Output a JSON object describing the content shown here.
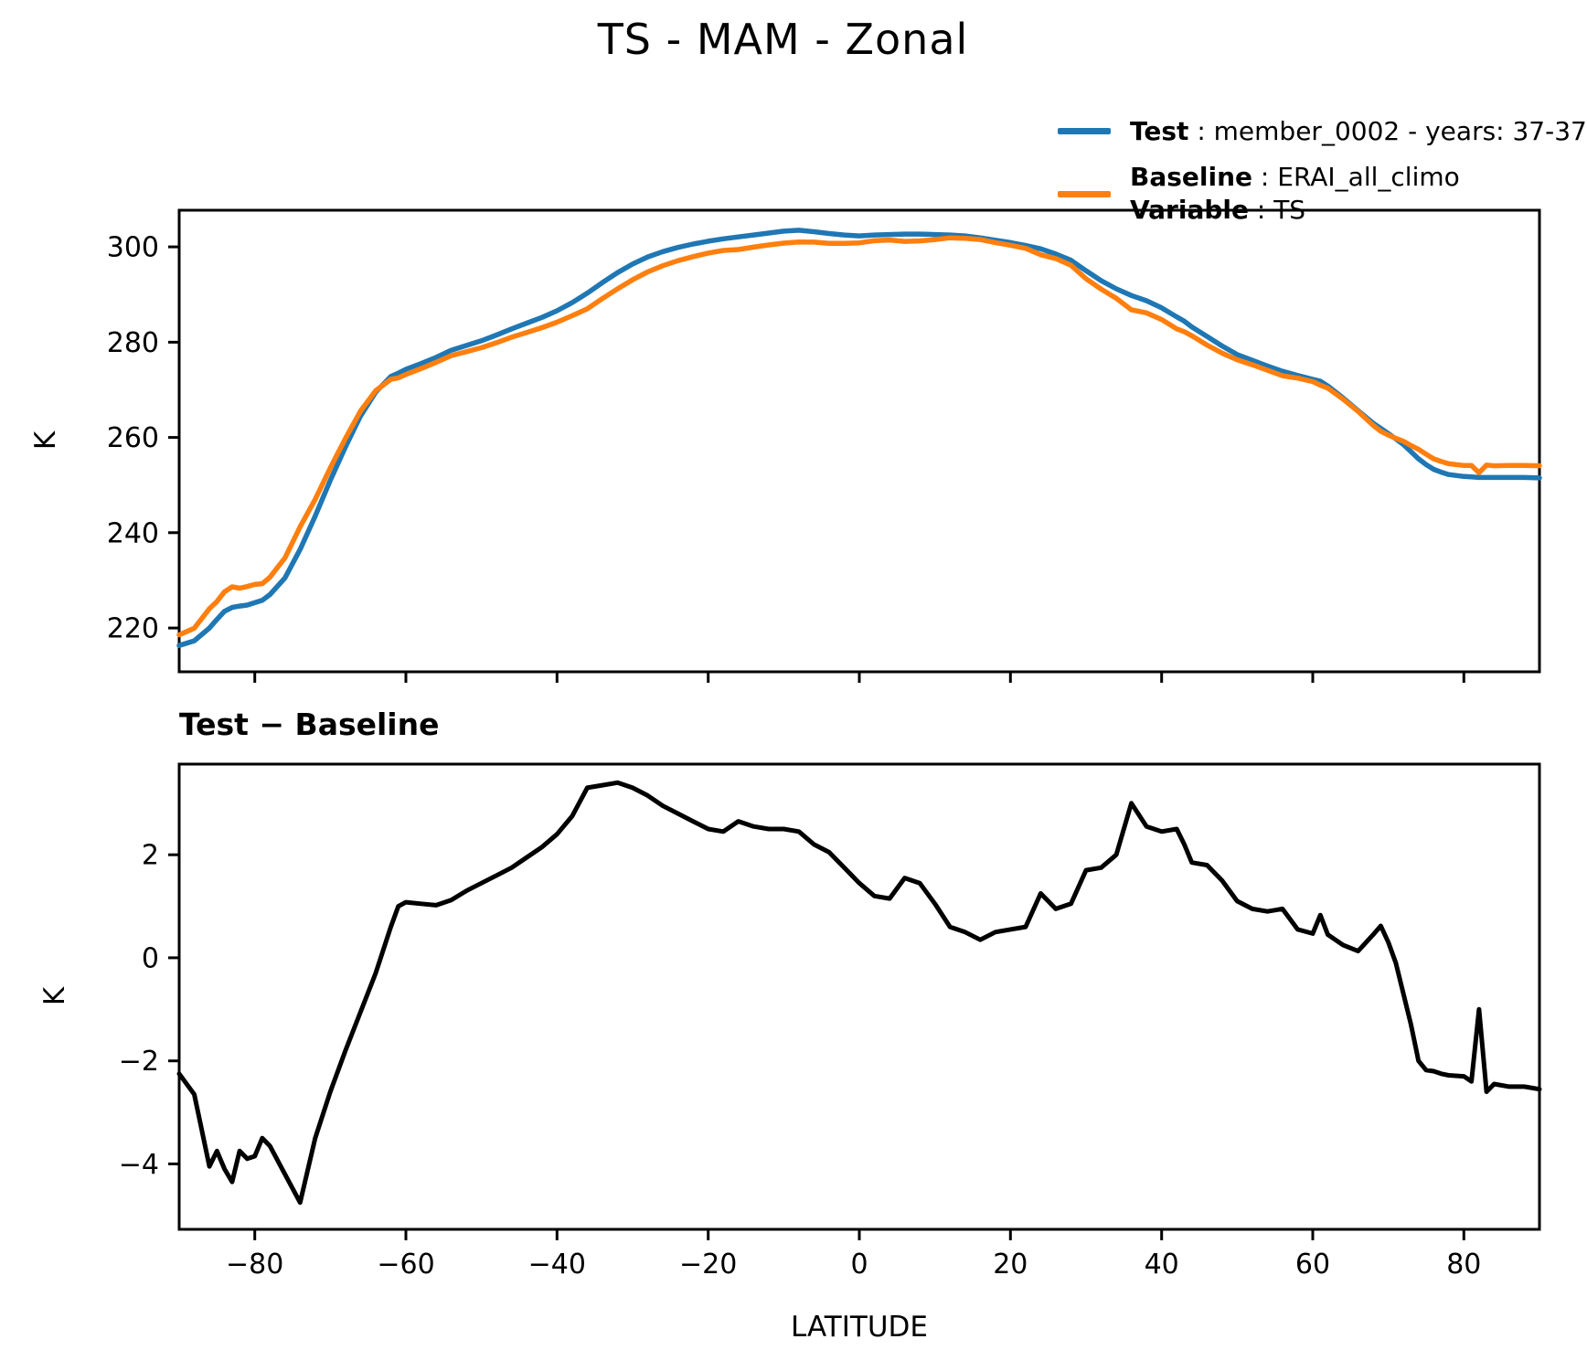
{
  "figure": {
    "title": "TS - MAM - Zonal",
    "background": "#ffffff",
    "accent_colors": {
      "test": "#1f77b4",
      "baseline": "#ff7f0e",
      "diff": "#000000"
    }
  },
  "legend": {
    "test_label": "Test",
    "test_desc": " : member_0002 - years: 37-37",
    "baseline_label": "Baseline",
    "baseline_desc": " : ERAI_all_climo",
    "variable_label": "Variable",
    "variable_desc": " : TS"
  },
  "chart_data": {
    "latitudes": [
      -90,
      -88,
      -86,
      -85,
      -84,
      -83,
      -82,
      -81,
      -80,
      -79,
      -78,
      -76,
      -74,
      -72,
      -70,
      -68,
      -66,
      -64,
      -62,
      -61,
      -60,
      -58,
      -56,
      -54,
      -52,
      -50,
      -48,
      -46,
      -44,
      -42,
      -40,
      -38,
      -36,
      -34,
      -32,
      -30,
      -28,
      -26,
      -24,
      -22,
      -20,
      -18,
      -16,
      -14,
      -12,
      -10,
      -8,
      -6,
      -4,
      -2,
      0,
      2,
      4,
      6,
      8,
      10,
      12,
      14,
      16,
      18,
      20,
      22,
      24,
      26,
      28,
      30,
      32,
      34,
      36,
      38,
      40,
      42,
      43,
      44,
      46,
      48,
      50,
      52,
      54,
      56,
      58,
      60,
      61,
      62,
      64,
      66,
      68,
      69,
      70,
      71,
      72,
      73,
      74,
      75,
      76,
      77,
      78,
      80,
      81,
      82,
      83,
      84,
      86,
      88,
      90
    ],
    "panels": [
      {
        "type": "line",
        "title": "TS - MAM - Zonal",
        "xlabel": "",
        "ylabel": "K",
        "xlim": [
          -90,
          90
        ],
        "ylim": [
          210.8,
          307.7
        ],
        "grid": false,
        "legend_position": "upper right, outside axes",
        "xticks": [
          {
            "v": -80,
            "label": "−80"
          },
          {
            "v": -60,
            "label": "−60"
          },
          {
            "v": -40,
            "label": "−40"
          },
          {
            "v": -20,
            "label": "−20"
          },
          {
            "v": 0,
            "label": "0"
          },
          {
            "v": 20,
            "label": "20"
          },
          {
            "v": 40,
            "label": "40"
          },
          {
            "v": 60,
            "label": "60"
          },
          {
            "v": 80,
            "label": "80"
          }
        ],
        "show_xtick_labels": false,
        "yticks": [
          {
            "v": 220,
            "label": "220"
          },
          {
            "v": 240,
            "label": "240"
          },
          {
            "v": 260,
            "label": "260"
          },
          {
            "v": 280,
            "label": "280"
          },
          {
            "v": 300,
            "label": "300"
          }
        ],
        "series": [
          {
            "name": "Test",
            "color": "#1f77b4",
            "values": [
              216.3,
              217.3,
              220.0,
              221.8,
              223.5,
              224.3,
              224.6,
              224.8,
              225.3,
              225.8,
              227.0,
              230.5,
              236.5,
              243.5,
              251.0,
              258.0,
              264.5,
              269.5,
              272.8,
              273.5,
              274.3,
              275.5,
              276.8,
              278.3,
              279.3,
              280.3,
              281.5,
              282.8,
              284.0,
              285.2,
              286.6,
              288.3,
              290.3,
              292.5,
              294.6,
              296.4,
              297.9,
              299.0,
              299.9,
              300.6,
              301.2,
              301.7,
              302.1,
              302.5,
              302.9,
              303.3,
              303.5,
              303.2,
              302.8,
              302.5,
              302.3,
              302.5,
              302.6,
              302.7,
              302.7,
              302.6,
              302.5,
              302.3,
              301.9,
              301.4,
              300.9,
              300.3,
              299.6,
              298.5,
              297.2,
              295.0,
              292.9,
              291.2,
              289.8,
              288.7,
              287.2,
              285.3,
              284.4,
              283.2,
              281.2,
              279.2,
              277.4,
              276.2,
              275.0,
              273.9,
              273.0,
              272.2,
              271.8,
              270.8,
              268.3,
              265.6,
              263.0,
              261.9,
              260.8,
              259.7,
              258.5,
              257.0,
              255.5,
              254.3,
              253.3,
              252.7,
              252.2,
              251.8,
              251.7,
              251.6,
              251.6,
              251.6,
              251.6,
              251.6,
              251.5
            ]
          },
          {
            "name": "Baseline",
            "color": "#ff7f0e",
            "values": [
              218.55,
              219.95,
              224.05,
              225.55,
              227.6,
              228.65,
              228.35,
              228.7,
              229.15,
              229.3,
              230.65,
              234.7,
              241.25,
              247.0,
              253.6,
              259.8,
              265.55,
              269.8,
              272.2,
              272.5,
              273.22,
              274.45,
              275.78,
              277.18,
              278.0,
              278.85,
              279.9,
              281.05,
              282.05,
              283.05,
              284.2,
              285.55,
              287.0,
              289.15,
              291.2,
              293.1,
              294.75,
              296.05,
              297.1,
              297.95,
              298.7,
              299.25,
              299.45,
              299.95,
              300.4,
              300.8,
              301.05,
              301.0,
              300.75,
              300.75,
              300.85,
              301.3,
              301.45,
              301.15,
              301.25,
              301.55,
              301.9,
              301.8,
              301.55,
              300.9,
              300.35,
              299.7,
              298.35,
              297.55,
              296.15,
              293.3,
              291.15,
              289.2,
              286.8,
              286.15,
              284.75,
              282.8,
              282.2,
              281.35,
              279.4,
              277.7,
              276.3,
              275.25,
              274.1,
              272.95,
              272.45,
              271.73,
              270.97,
              270.35,
              268.05,
              265.47,
              262.55,
              261.28,
              260.5,
              259.8,
              259.2,
              258.3,
              257.5,
              256.48,
              255.5,
              254.95,
              254.48,
              254.1,
              254.1,
              252.6,
              254.2,
              254.05,
              254.1,
              254.1,
              254.05
            ]
          }
        ]
      },
      {
        "type": "line",
        "title": "Test − Baseline",
        "xlabel": "LATITUDE",
        "ylabel": "K",
        "xlim": [
          -90,
          90
        ],
        "ylim": [
          -5.27,
          3.76
        ],
        "grid": false,
        "xticks": [
          {
            "v": -80,
            "label": "−80"
          },
          {
            "v": -60,
            "label": "−60"
          },
          {
            "v": -40,
            "label": "−40"
          },
          {
            "v": -20,
            "label": "−20"
          },
          {
            "v": 0,
            "label": "0"
          },
          {
            "v": 20,
            "label": "20"
          },
          {
            "v": 40,
            "label": "40"
          },
          {
            "v": 60,
            "label": "60"
          },
          {
            "v": 80,
            "label": "80"
          }
        ],
        "show_xtick_labels": true,
        "yticks": [
          {
            "v": -4,
            "label": "−4"
          },
          {
            "v": -2,
            "label": "−2"
          },
          {
            "v": 0,
            "label": "0"
          },
          {
            "v": 2,
            "label": "2"
          }
        ],
        "series": [
          {
            "name": "Test - Baseline",
            "color": "#000000",
            "values": [
              -2.25,
              -2.65,
              -4.05,
              -3.75,
              -4.1,
              -4.35,
              -3.75,
              -3.9,
              -3.85,
              -3.5,
              -3.65,
              -4.2,
              -4.75,
              -3.5,
              -2.6,
              -1.8,
              -1.05,
              -0.3,
              0.6,
              1.0,
              1.08,
              1.05,
              1.02,
              1.12,
              1.3,
              1.45,
              1.6,
              1.75,
              1.95,
              2.15,
              2.4,
              2.75,
              3.3,
              3.35,
              3.4,
              3.3,
              3.15,
              2.95,
              2.8,
              2.65,
              2.5,
              2.45,
              2.65,
              2.55,
              2.5,
              2.5,
              2.45,
              2.2,
              2.05,
              1.75,
              1.45,
              1.2,
              1.15,
              1.55,
              1.45,
              1.05,
              0.6,
              0.5,
              0.35,
              0.5,
              0.55,
              0.6,
              1.25,
              0.95,
              1.05,
              1.7,
              1.75,
              2.0,
              3.0,
              2.55,
              2.45,
              2.5,
              2.2,
              1.85,
              1.8,
              1.5,
              1.1,
              0.95,
              0.9,
              0.95,
              0.55,
              0.47,
              0.83,
              0.45,
              0.25,
              0.13,
              0.45,
              0.62,
              0.3,
              -0.1,
              -0.7,
              -1.3,
              -2.0,
              -2.18,
              -2.2,
              -2.25,
              -2.28,
              -2.3,
              -2.4,
              -1.0,
              -2.6,
              -2.45,
              -2.5,
              -2.5,
              -2.55
            ]
          }
        ]
      }
    ]
  },
  "axis_labels": {
    "top_ylabel": "K",
    "bottom_ylabel": "K",
    "bottom_xlabel": "LATITUDE"
  },
  "diff_panel_title": "Test − Baseline"
}
